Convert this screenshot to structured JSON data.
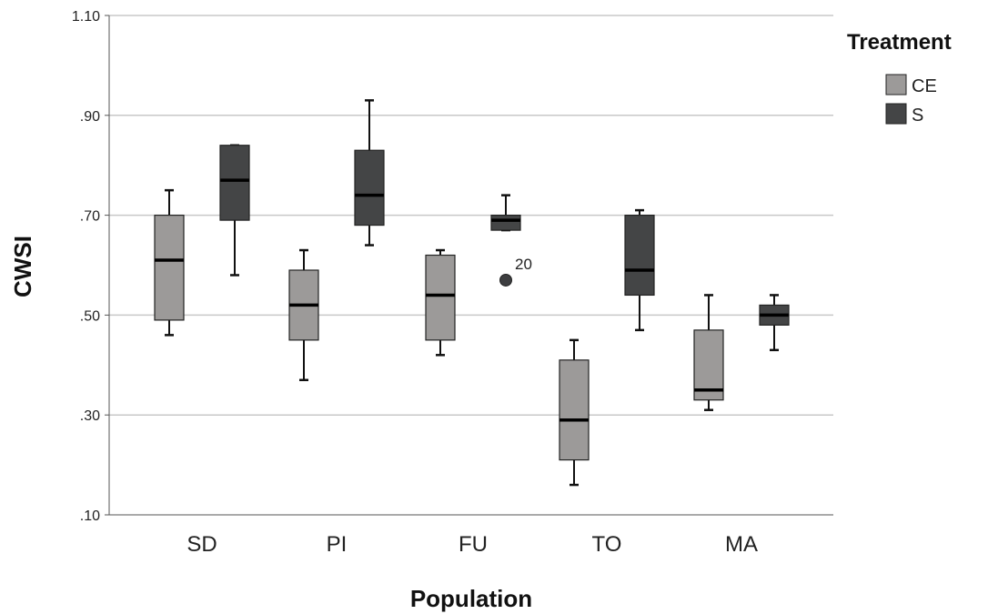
{
  "chart_data": {
    "type": "boxplot",
    "xlabel": "Population",
    "ylabel": "CWSI",
    "ylim": [
      0.1,
      1.1
    ],
    "yticks": [
      0.1,
      0.3,
      0.5,
      0.7,
      0.9,
      1.1
    ],
    "ytick_labels": [
      ".10",
      ".30",
      ".50",
      ".70",
      ".90",
      "1.10"
    ],
    "grid": "horizontal",
    "legend": {
      "title": "Treatment",
      "placement": "top-right",
      "entries": [
        {
          "name": "CE",
          "color": "#9c9a99"
        },
        {
          "name": "S",
          "color": "#444546"
        }
      ]
    },
    "categories": [
      "SD",
      "PI",
      "FU",
      "TO",
      "MA"
    ],
    "series": [
      {
        "name": "CE",
        "color": "#9c9a99",
        "boxes": [
          {
            "min": 0.46,
            "q1": 0.49,
            "median": 0.61,
            "q3": 0.7,
            "max": 0.75
          },
          {
            "min": 0.37,
            "q1": 0.45,
            "median": 0.52,
            "q3": 0.59,
            "max": 0.63
          },
          {
            "min": 0.42,
            "q1": 0.45,
            "median": 0.54,
            "q3": 0.62,
            "max": 0.63
          },
          {
            "min": 0.16,
            "q1": 0.21,
            "median": 0.29,
            "q3": 0.41,
            "max": 0.45
          },
          {
            "min": 0.31,
            "q1": 0.33,
            "median": 0.35,
            "q3": 0.47,
            "max": 0.54
          }
        ]
      },
      {
        "name": "S",
        "color": "#444546",
        "boxes": [
          {
            "min": 0.58,
            "q1": 0.69,
            "median": 0.77,
            "q3": 0.84,
            "max": 0.84
          },
          {
            "min": 0.64,
            "q1": 0.68,
            "median": 0.74,
            "q3": 0.83,
            "max": 0.93
          },
          {
            "min": 0.67,
            "q1": 0.67,
            "median": 0.69,
            "q3": 0.7,
            "max": 0.74,
            "outliers": [
              {
                "value": 0.57,
                "label": "20"
              }
            ]
          },
          {
            "min": 0.47,
            "q1": 0.54,
            "median": 0.59,
            "q3": 0.7,
            "max": 0.71
          },
          {
            "min": 0.43,
            "q1": 0.48,
            "median": 0.5,
            "q3": 0.52,
            "max": 0.54
          }
        ]
      }
    ]
  }
}
